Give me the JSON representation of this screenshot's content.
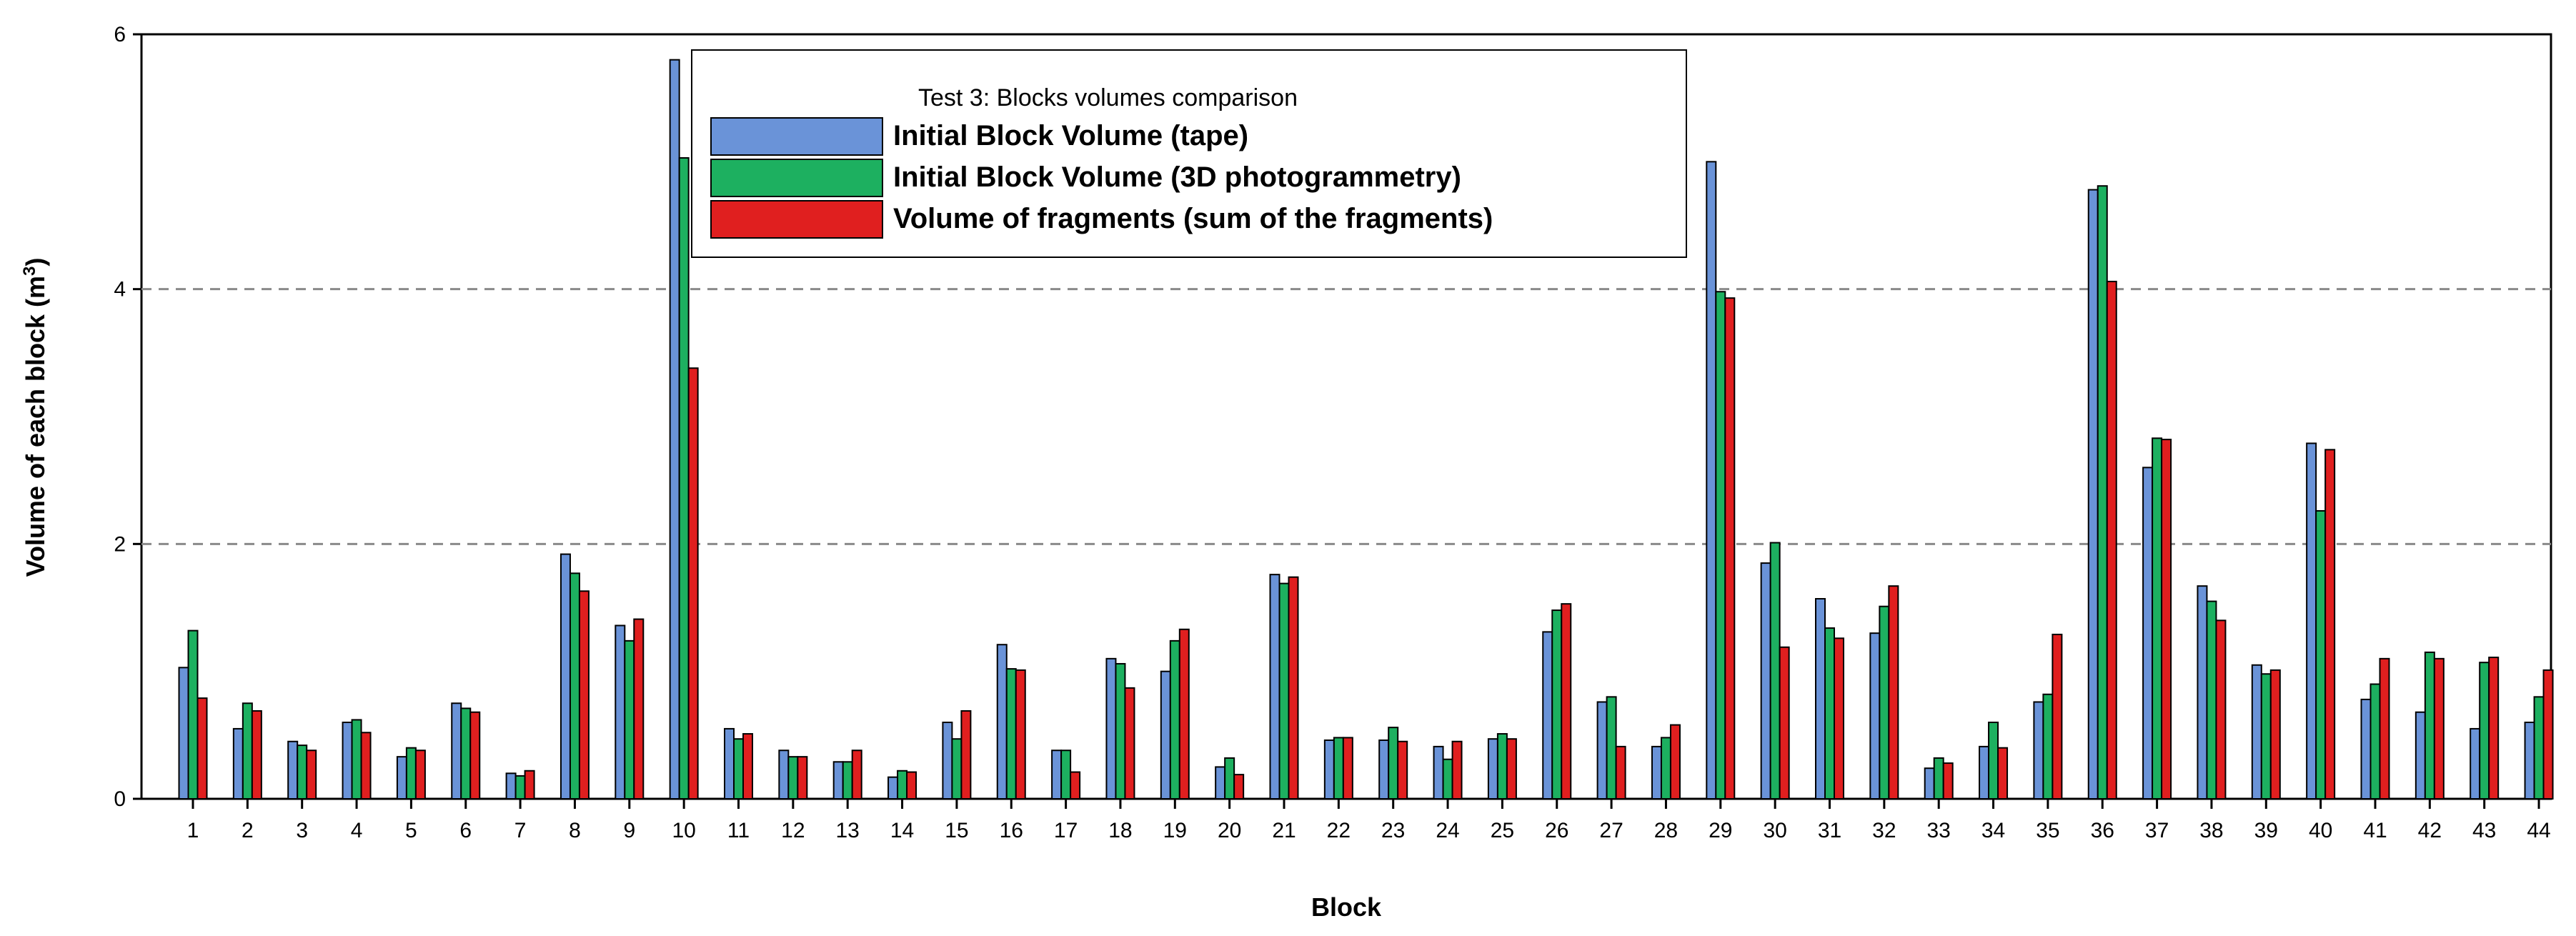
{
  "chart_data": {
    "type": "bar",
    "title": "Test 3: Blocks volumes comparison",
    "xlabel": "Block",
    "ylabel_main": "Volume of each block (m",
    "ylabel_sup": "3",
    "ylabel_close": ")",
    "ylim": [
      0,
      6
    ],
    "yticks": [
      0,
      2,
      4,
      6
    ],
    "dashed_gridlines_at": [
      2,
      4
    ],
    "legend_position": "top-left (inside plot, near block 10)",
    "categories": [
      "1",
      "2",
      "3",
      "4",
      "5",
      "6",
      "7",
      "8",
      "9",
      "10",
      "11",
      "12",
      "13",
      "14",
      "15",
      "16",
      "17",
      "18",
      "19",
      "20",
      "21",
      "22",
      "23",
      "24",
      "25",
      "26",
      "27",
      "28",
      "29",
      "30",
      "31",
      "32",
      "33",
      "34",
      "35",
      "36",
      "37",
      "38",
      "39",
      "40",
      "41",
      "42",
      "43",
      "44"
    ],
    "series": [
      {
        "name": "Initial Block Volume (tape)",
        "color": "#6a93d8",
        "values": [
          1.03,
          0.55,
          0.45,
          0.6,
          0.33,
          0.75,
          0.2,
          1.92,
          1.36,
          5.8,
          0.55,
          0.38,
          0.29,
          0.17,
          0.6,
          1.21,
          0.38,
          1.1,
          1.0,
          0.25,
          1.76,
          0.46,
          0.46,
          0.41,
          0.47,
          1.31,
          0.76,
          0.41,
          5.0,
          1.85,
          1.57,
          1.3,
          0.24,
          0.41,
          0.76,
          4.78,
          2.6,
          1.67,
          1.05,
          2.79,
          0.78,
          0.68,
          0.55,
          0.6
        ]
      },
      {
        "name": "Initial Block Volume (3D photogrammetry)",
        "color": "#1db060",
        "values": [
          1.32,
          0.75,
          0.42,
          0.62,
          0.4,
          0.71,
          0.18,
          1.77,
          1.24,
          5.03,
          0.47,
          0.33,
          0.29,
          0.22,
          0.47,
          1.02,
          0.38,
          1.06,
          1.24,
          0.32,
          1.69,
          0.48,
          0.56,
          0.31,
          0.51,
          1.48,
          0.8,
          0.48,
          3.98,
          2.01,
          1.34,
          1.51,
          0.32,
          0.6,
          0.82,
          4.81,
          2.83,
          1.55,
          0.98,
          2.26,
          0.9,
          1.15,
          1.07,
          0.8
        ]
      },
      {
        "name": "Volume of fragments (sum of the fragments)",
        "color": "#e01f1f",
        "values": [
          0.79,
          0.69,
          0.38,
          0.52,
          0.38,
          0.68,
          0.22,
          1.63,
          1.41,
          3.38,
          0.51,
          0.33,
          0.38,
          0.21,
          0.69,
          1.01,
          0.21,
          0.87,
          1.33,
          0.19,
          1.74,
          0.48,
          0.45,
          0.45,
          0.47,
          1.53,
          0.41,
          0.58,
          3.93,
          1.19,
          1.26,
          1.67,
          0.28,
          0.4,
          1.29,
          4.06,
          2.82,
          1.4,
          1.01,
          2.74,
          1.1,
          1.1,
          1.11,
          1.01
        ]
      }
    ]
  }
}
